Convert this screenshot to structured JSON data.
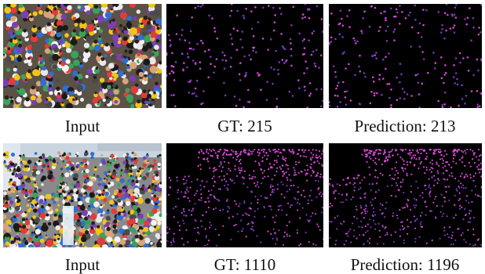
{
  "rows": [
    {
      "captions": {
        "input": "Input",
        "gt": "GT: 215",
        "pred": "Prediction: 213"
      },
      "gt_count": 215,
      "pred_count": 213
    },
    {
      "captions": {
        "input": "Input",
        "gt": "GT: 1110",
        "pred": "Prediction: 1196"
      },
      "gt_count": 1110,
      "pred_count": 1196
    }
  ],
  "colors": {
    "map_background": "#000000",
    "dot_magenta": "#d94bd9",
    "dot_purple": "#7a3cc0",
    "crowd_colors": [
      "#f2f2f2",
      "#e33b3b",
      "#f0c419",
      "#7b3fb5",
      "#2f6fd1",
      "#1a1a1a",
      "#d9a47a",
      "#4a4a4a",
      "#e8e8e8",
      "#3aa35b"
    ]
  }
}
